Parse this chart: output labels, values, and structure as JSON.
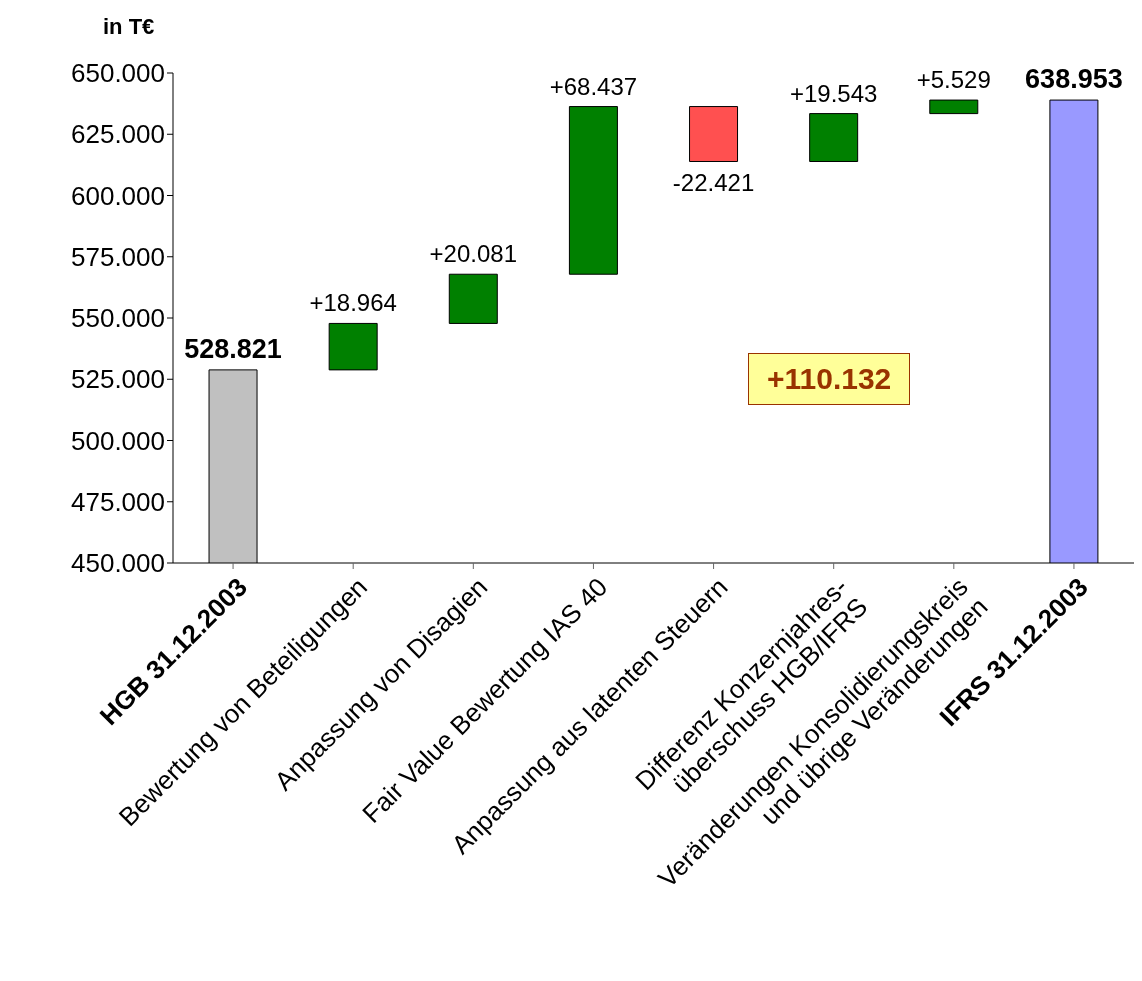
{
  "chart_data": {
    "type": "bar",
    "ylabel": "in T€",
    "categories": [
      "HGB 31.12.2003",
      "Bewertung von Beteiligungen",
      "Anpassung von Disagien",
      "Fair Value Bewertung IAS 40",
      "Anpassung aus latenten Steuern",
      "Differenz Konzernjahres-\nüberschuss HGB/IFRS",
      "Veränderungen Konsolidierungskreis\nund übrige Veränderungen",
      "IFRS 31.12.2003"
    ],
    "values": [
      528821,
      18964,
      20081,
      68437,
      -22421,
      19543,
      5529,
      638953
    ],
    "base": [
      null,
      528821,
      547785,
      567866,
      636303,
      613882,
      633425,
      null
    ],
    "colors": [
      "#c0c0c0",
      "#008000",
      "#008000",
      "#008000",
      "#ff5050",
      "#008000",
      "#008000",
      "#9999ff"
    ],
    "value_labels": [
      "528.821",
      "+18.964",
      "+20.081",
      "+68.437",
      "-22.421",
      "+19.543",
      "+5.529",
      "638.953"
    ],
    "ylim": [
      450000,
      650000
    ],
    "yticks": [
      {
        "value": 450000,
        "label": "450.000"
      },
      {
        "value": 475000,
        "label": "475.000"
      },
      {
        "value": 500000,
        "label": "500.000"
      },
      {
        "value": 525000,
        "label": "525.000"
      },
      {
        "value": 550000,
        "label": "550.000"
      },
      {
        "value": 575000,
        "label": "575.000"
      },
      {
        "value": 600000,
        "label": "600.000"
      },
      {
        "value": 625000,
        "label": "625.000"
      },
      {
        "value": 650000,
        "label": "650.000"
      }
    ],
    "annotations": [
      "+110.132"
    ]
  }
}
